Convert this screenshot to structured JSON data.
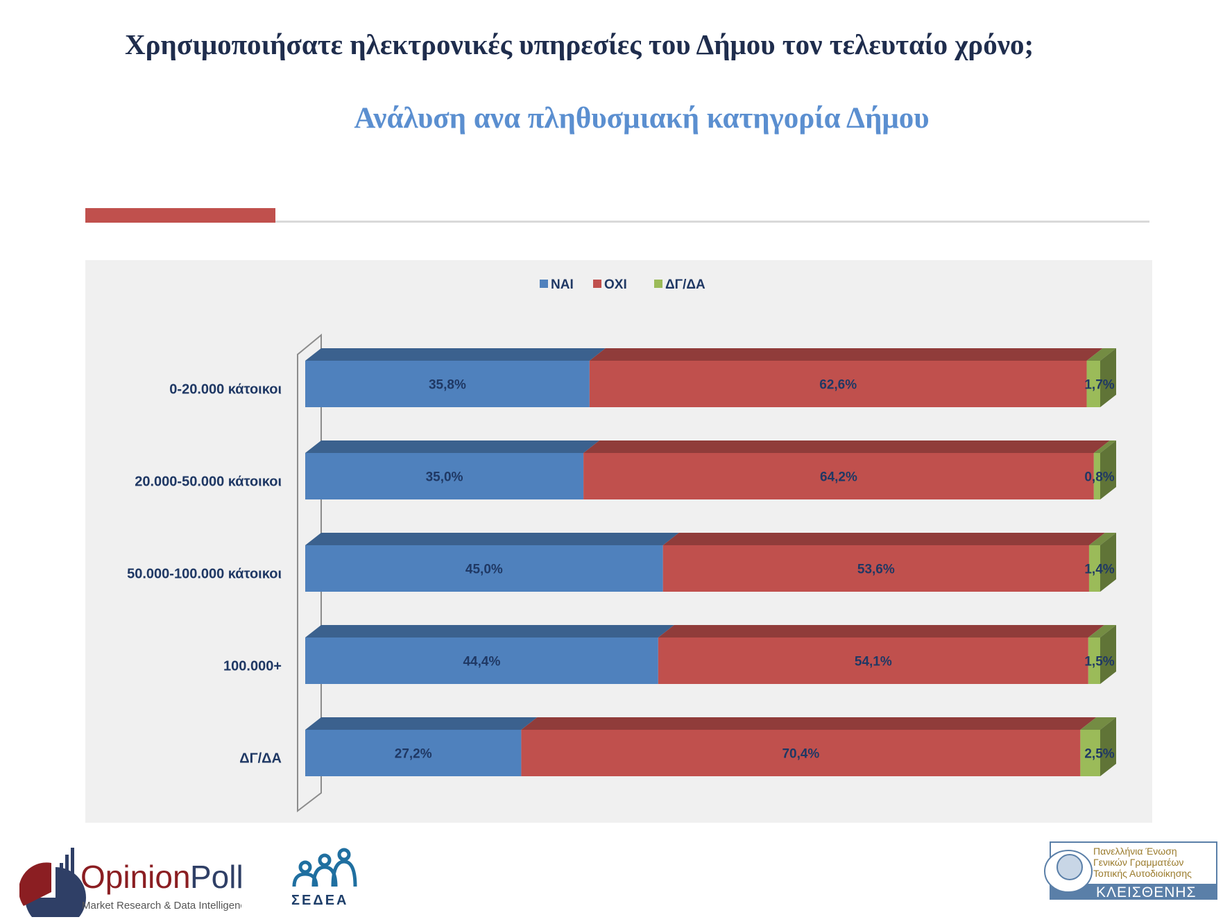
{
  "header": {
    "title": "Χρησιμοποιήσατε ηλεκτρονικές υπηρεσίες του Δήμου τον τελευταίο χρόνο;",
    "subtitle": "Ανάλυση ανα πληθυσμιακή κατηγορία Δήμου"
  },
  "chart_data": {
    "type": "bar",
    "orientation": "horizontal",
    "stacked": true,
    "percent_stacked": true,
    "three_d": true,
    "categories": [
      "0-20.000 κάτοικοι",
      "20.000-50.000 κάτοικοι",
      "50.000-100.000 κάτοικοι",
      "100.000+",
      "ΔΓ/ΔΑ"
    ],
    "series": [
      {
        "name": "ΝΑΙ",
        "color": "#4f81bd",
        "values": [
          35.8,
          35.0,
          45.0,
          44.4,
          27.2
        ],
        "labels": [
          "35,8%",
          "35,0%",
          "45,0%",
          "44,4%",
          "27,2%"
        ]
      },
      {
        "name": "ΟΧΙ",
        "color": "#c0504d",
        "values": [
          62.6,
          64.2,
          53.6,
          54.1,
          70.4
        ],
        "labels": [
          "62,6%",
          "64,2%",
          "53,6%",
          "54,1%",
          "70,4%"
        ]
      },
      {
        "name": "ΔΓ/ΔΑ",
        "color": "#9bbb59",
        "values": [
          1.7,
          0.8,
          1.4,
          1.5,
          2.5
        ],
        "labels": [
          "1,7%",
          "0,8%",
          "1,4%",
          "1,5%",
          "2,5%"
        ]
      }
    ],
    "legend": "top-center",
    "grid": false,
    "xlim": [
      0,
      100
    ]
  },
  "logos": {
    "opinionpoll": {
      "name_part1": "Opinion",
      "name_part2": "Poll",
      "tagline": "Market Research & Data Intelligence"
    },
    "sedea": {
      "name": "ΣΕΔΕΑ"
    },
    "kleisthenis": {
      "line1": "Πανελλήνια Ένωση",
      "line2": "Γενικών Γραμματέων",
      "line3": "Τοπικής Αυτοδιοίκησης",
      "name": "ΚΛΕΙΣΘΕΝΗΣ"
    }
  }
}
